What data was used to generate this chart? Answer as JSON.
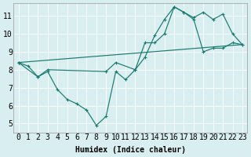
{
  "xlabel": "Humidex (Indice chaleur)",
  "bg_color": "#d8eef0",
  "line_color": "#1a7a6e",
  "grid_color": "#ffffff",
  "xlim": [
    -0.5,
    23.5
  ],
  "ylim": [
    4.5,
    11.7
  ],
  "xticks": [
    0,
    1,
    2,
    3,
    4,
    5,
    6,
    7,
    8,
    9,
    10,
    11,
    12,
    13,
    14,
    15,
    16,
    17,
    18,
    19,
    20,
    21,
    22,
    23
  ],
  "yticks": [
    5,
    6,
    7,
    8,
    9,
    10,
    11
  ],
  "line1_x": [
    0,
    1,
    2,
    3,
    4,
    5,
    6,
    7,
    8,
    9,
    10,
    11,
    12,
    13,
    14,
    15,
    16,
    17,
    18,
    19,
    20,
    21,
    22,
    23
  ],
  "line1_y": [
    8.4,
    8.2,
    7.6,
    7.9,
    6.9,
    6.35,
    6.1,
    5.75,
    4.9,
    5.4,
    7.9,
    7.45,
    8.0,
    9.5,
    9.5,
    10.0,
    11.5,
    11.2,
    10.9,
    11.2,
    10.8,
    11.1,
    10.0,
    9.4
  ],
  "line2_x": [
    0,
    2,
    3,
    9,
    10,
    12,
    13,
    14,
    15,
    16,
    17,
    18,
    19,
    20,
    21,
    22,
    23
  ],
  "line2_y": [
    8.4,
    7.6,
    8.0,
    7.9,
    8.4,
    8.0,
    8.7,
    9.9,
    10.8,
    11.5,
    11.2,
    10.8,
    9.0,
    9.2,
    9.2,
    9.5,
    9.4
  ],
  "line3_x": [
    0,
    23
  ],
  "line3_y": [
    8.4,
    9.4
  ],
  "font_size": 7,
  "font_family": "monospace"
}
